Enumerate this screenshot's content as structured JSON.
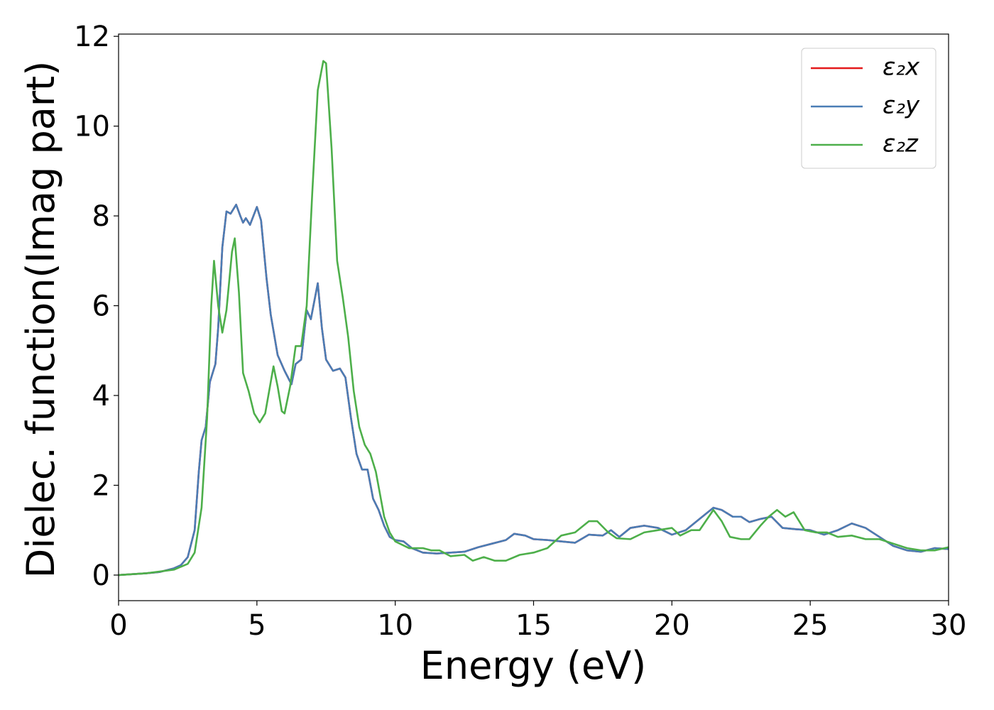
{
  "chart_data": {
    "type": "line",
    "xlabel": "Energy (eV)",
    "ylabel": "Dielec. function(Imag part)",
    "xlim": [
      0,
      30
    ],
    "ylim": [
      -0.57,
      12.05
    ],
    "xticks": [
      0,
      5,
      10,
      15,
      20,
      25,
      30
    ],
    "yticks": [
      0,
      2,
      4,
      6,
      8,
      10,
      12
    ],
    "legend": "upper right",
    "series": [
      {
        "name": "ε₂x",
        "color": "#e41a1c",
        "x": [
          0,
          1,
          1.5,
          2,
          2.25,
          2.5,
          2.75,
          2.9,
          3.0,
          3.15,
          3.3,
          3.5,
          3.6,
          3.75,
          3.9,
          4.05,
          4.25,
          4.4,
          4.5,
          4.6,
          4.75,
          5.0,
          5.15,
          5.35,
          5.5,
          5.75,
          6.0,
          6.25,
          6.4,
          6.6,
          6.8,
          6.95,
          7.2,
          7.35,
          7.5,
          7.75,
          8.0,
          8.2,
          8.4,
          8.6,
          8.8,
          9.0,
          9.2,
          9.4,
          9.6,
          9.8,
          10.0,
          10.3,
          10.6,
          11,
          11.5,
          12,
          12.5,
          13,
          13.5,
          14,
          14.3,
          14.7,
          15,
          15.5,
          16,
          16.5,
          17,
          17.5,
          17.8,
          18.1,
          18.5,
          19,
          19.5,
          20,
          20.5,
          21,
          21.5,
          21.8,
          22.2,
          22.5,
          22.8,
          23.2,
          23.6,
          24,
          24.5,
          25,
          25.5,
          26,
          26.5,
          27,
          27.5,
          28,
          28.5,
          29,
          29.5,
          30
        ],
        "values": [
          0,
          0.04,
          0.07,
          0.15,
          0.22,
          0.4,
          1.0,
          2.3,
          3.0,
          3.3,
          4.3,
          4.7,
          5.5,
          7.3,
          8.1,
          8.05,
          8.25,
          8.0,
          7.85,
          7.95,
          7.8,
          8.2,
          7.9,
          6.6,
          5.8,
          4.9,
          4.55,
          4.25,
          4.7,
          4.8,
          5.9,
          5.7,
          6.5,
          5.5,
          4.8,
          4.55,
          4.6,
          4.4,
          3.5,
          2.7,
          2.35,
          2.35,
          1.7,
          1.45,
          1.1,
          0.85,
          0.78,
          0.75,
          0.6,
          0.5,
          0.48,
          0.5,
          0.52,
          0.62,
          0.7,
          0.78,
          0.92,
          0.88,
          0.8,
          0.78,
          0.75,
          0.72,
          0.9,
          0.88,
          1.0,
          0.85,
          1.05,
          1.1,
          1.05,
          0.9,
          1.0,
          1.25,
          1.5,
          1.45,
          1.3,
          1.3,
          1.18,
          1.25,
          1.3,
          1.05,
          1.02,
          1.0,
          0.9,
          1.0,
          1.15,
          1.05,
          0.85,
          0.65,
          0.55,
          0.52,
          0.6,
          0.58
        ]
      },
      {
        "name": "ε₂y",
        "color": "#4a7db5",
        "x": [
          0,
          1,
          1.5,
          2,
          2.25,
          2.5,
          2.75,
          2.9,
          3.0,
          3.15,
          3.3,
          3.5,
          3.6,
          3.75,
          3.9,
          4.05,
          4.25,
          4.4,
          4.5,
          4.6,
          4.75,
          5.0,
          5.15,
          5.35,
          5.5,
          5.75,
          6.0,
          6.25,
          6.4,
          6.6,
          6.8,
          6.95,
          7.2,
          7.35,
          7.5,
          7.75,
          8.0,
          8.2,
          8.4,
          8.6,
          8.8,
          9.0,
          9.2,
          9.4,
          9.6,
          9.8,
          10.0,
          10.3,
          10.6,
          11,
          11.5,
          12,
          12.5,
          13,
          13.5,
          14,
          14.3,
          14.7,
          15,
          15.5,
          16,
          16.5,
          17,
          17.5,
          17.8,
          18.1,
          18.5,
          19,
          19.5,
          20,
          20.5,
          21,
          21.5,
          21.8,
          22.2,
          22.5,
          22.8,
          23.2,
          23.6,
          24,
          24.5,
          25,
          25.5,
          26,
          26.5,
          27,
          27.5,
          28,
          28.5,
          29,
          29.5,
          30
        ],
        "values": [
          0,
          0.04,
          0.07,
          0.15,
          0.22,
          0.4,
          1.0,
          2.3,
          3.0,
          3.3,
          4.3,
          4.7,
          5.5,
          7.3,
          8.1,
          8.05,
          8.25,
          8.0,
          7.85,
          7.95,
          7.8,
          8.2,
          7.9,
          6.6,
          5.8,
          4.9,
          4.55,
          4.25,
          4.7,
          4.8,
          5.9,
          5.7,
          6.5,
          5.5,
          4.8,
          4.55,
          4.6,
          4.4,
          3.5,
          2.7,
          2.35,
          2.35,
          1.7,
          1.45,
          1.1,
          0.85,
          0.78,
          0.75,
          0.6,
          0.5,
          0.48,
          0.5,
          0.52,
          0.62,
          0.7,
          0.78,
          0.92,
          0.88,
          0.8,
          0.78,
          0.75,
          0.72,
          0.9,
          0.88,
          1.0,
          0.85,
          1.05,
          1.1,
          1.05,
          0.9,
          1.0,
          1.25,
          1.5,
          1.45,
          1.3,
          1.3,
          1.18,
          1.25,
          1.3,
          1.05,
          1.02,
          1.0,
          0.9,
          1.0,
          1.15,
          1.05,
          0.85,
          0.65,
          0.55,
          0.52,
          0.6,
          0.58
        ]
      },
      {
        "name": "ε₂z",
        "color": "#4daf4a",
        "x": [
          0,
          1,
          2,
          2.5,
          2.75,
          3.0,
          3.2,
          3.35,
          3.45,
          3.6,
          3.75,
          3.9,
          4.1,
          4.2,
          4.35,
          4.5,
          4.7,
          4.9,
          5.1,
          5.3,
          5.5,
          5.6,
          5.75,
          5.9,
          6.0,
          6.2,
          6.4,
          6.6,
          6.8,
          7.0,
          7.2,
          7.4,
          7.5,
          7.7,
          7.9,
          8.1,
          8.3,
          8.5,
          8.7,
          8.9,
          9.1,
          9.3,
          9.6,
          9.8,
          10,
          10.5,
          11,
          11.3,
          11.6,
          12,
          12.5,
          12.8,
          13.2,
          13.6,
          14,
          14.5,
          15,
          15.5,
          16,
          16.5,
          17,
          17.3,
          17.7,
          18,
          18.5,
          19,
          19.5,
          20,
          20.3,
          20.7,
          21,
          21.5,
          21.8,
          22.1,
          22.5,
          22.8,
          23.2,
          23.5,
          23.8,
          24.1,
          24.4,
          24.8,
          25.2,
          25.6,
          26,
          26.5,
          27,
          27.5,
          28,
          28.5,
          29,
          29.5,
          30
        ],
        "values": [
          0,
          0.04,
          0.12,
          0.25,
          0.5,
          1.5,
          3.5,
          6.0,
          7.0,
          6.0,
          5.4,
          5.9,
          7.2,
          7.5,
          6.3,
          4.5,
          4.1,
          3.6,
          3.4,
          3.6,
          4.3,
          4.65,
          4.2,
          3.65,
          3.6,
          4.2,
          5.1,
          5.1,
          6.0,
          8.5,
          10.8,
          11.45,
          11.4,
          9.5,
          7.0,
          6.2,
          5.3,
          4.1,
          3.3,
          2.9,
          2.7,
          2.3,
          1.3,
          0.95,
          0.75,
          0.6,
          0.6,
          0.55,
          0.55,
          0.42,
          0.45,
          0.32,
          0.4,
          0.32,
          0.32,
          0.45,
          0.5,
          0.6,
          0.88,
          0.95,
          1.2,
          1.2,
          0.95,
          0.82,
          0.8,
          0.95,
          1.0,
          1.05,
          0.88,
          1.0,
          1.0,
          1.45,
          1.2,
          0.85,
          0.8,
          0.8,
          1.1,
          1.3,
          1.45,
          1.3,
          1.4,
          1.0,
          0.95,
          0.95,
          0.85,
          0.88,
          0.8,
          0.8,
          0.7,
          0.6,
          0.55,
          0.55,
          0.62
        ]
      }
    ]
  }
}
